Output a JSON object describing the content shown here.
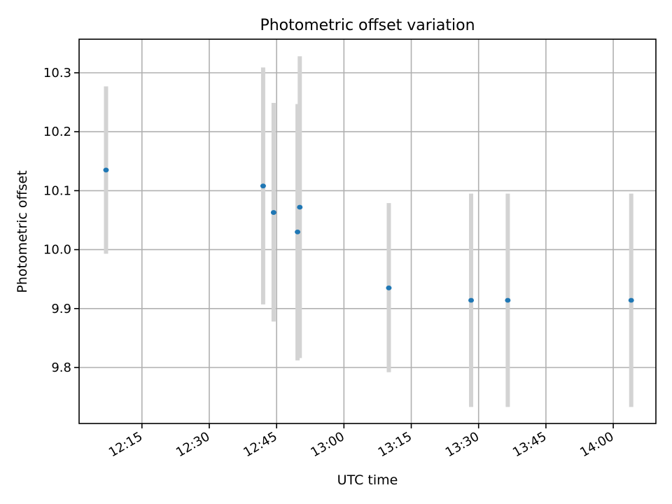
{
  "chart_data": {
    "type": "scatter",
    "title": "Photometric offset variation",
    "xlabel": "UTC time",
    "ylabel": "Photometric offset",
    "x_ticks": [
      "12:15",
      "12:30",
      "12:45",
      "13:00",
      "13:15",
      "13:30",
      "13:45",
      "14:00"
    ],
    "y_ticks": [
      "9.8",
      "9.9",
      "10.0",
      "10.1",
      "10.2",
      "10.3"
    ],
    "xlim": [
      "12:01:00",
      "14:09:30"
    ],
    "ylim": [
      9.705,
      10.357
    ],
    "grid": true,
    "colors": {
      "point": "#1f77b4",
      "errorbar": "#d3d3d3",
      "grid": "#b0b0b0"
    },
    "series": [
      {
        "points": [
          {
            "x": "12:07:00",
            "y": 10.135,
            "ymin": 9.993,
            "ymax": 10.277
          },
          {
            "x": "12:42:00",
            "y": 10.108,
            "ymin": 9.907,
            "ymax": 10.309
          },
          {
            "x": "12:44:20",
            "y": 10.063,
            "ymin": 9.878,
            "ymax": 10.249
          },
          {
            "x": "12:49:40",
            "y": 10.03,
            "ymin": 9.812,
            "ymax": 10.247
          },
          {
            "x": "12:50:10",
            "y": 10.072,
            "ymin": 9.816,
            "ymax": 10.328
          },
          {
            "x": "13:10:00",
            "y": 9.935,
            "ymin": 9.792,
            "ymax": 10.079
          },
          {
            "x": "13:28:20",
            "y": 9.914,
            "ymin": 9.733,
            "ymax": 10.095
          },
          {
            "x": "13:36:30",
            "y": 9.914,
            "ymin": 9.733,
            "ymax": 10.095
          },
          {
            "x": "14:04:00",
            "y": 9.914,
            "ymin": 9.733,
            "ymax": 10.095
          }
        ]
      }
    ]
  }
}
